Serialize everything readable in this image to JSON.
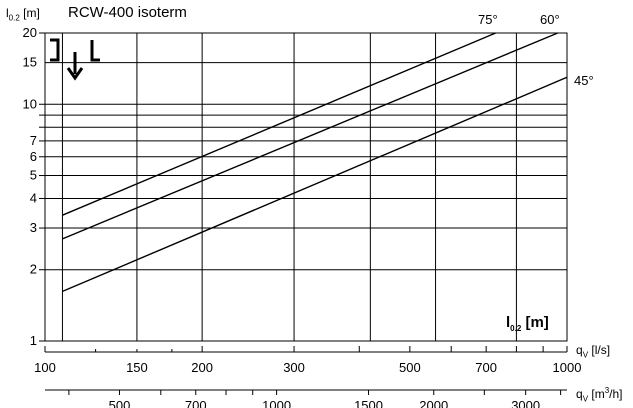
{
  "chart_data": {
    "type": "line",
    "title": "RCW-400 isoterm",
    "ylabel": {
      "main": "l",
      "sub": "0.2",
      "unit": " [m]"
    },
    "in_chart_label": {
      "main": "l",
      "sub": "0.2",
      "unit": " [m]"
    },
    "x_axis_1": {
      "label_main": "q",
      "label_sub": "V",
      "label_unit": " [l/s]",
      "scale": "log",
      "range": [
        100,
        1000
      ],
      "ticks": [
        100,
        150,
        200,
        300,
        500,
        700,
        1000
      ]
    },
    "x_axis_2": {
      "label_main": "q",
      "label_sub": "V",
      "label_unit": " [m",
      "label_sup": "3",
      "label_unit2": "/h]",
      "scale": "log",
      "range": [
        360,
        3600
      ],
      "ticks": [
        500,
        700,
        1000,
        1500,
        2000,
        3000
      ]
    },
    "y_axis": {
      "scale": "log",
      "range": [
        1,
        20
      ],
      "ticks": [
        1,
        2,
        3,
        4,
        5,
        6,
        7,
        10,
        15,
        20
      ]
    },
    "x_gridlines": [
      108,
      150,
      200,
      300,
      420,
      560,
      800,
      1000
    ],
    "y_gridlines": [
      2,
      3,
      4,
      5,
      6,
      7,
      8,
      9,
      10,
      15,
      20
    ],
    "series": [
      {
        "name": "75°",
        "x": [
          108,
          730
        ],
        "y": [
          3.4,
          20
        ]
      },
      {
        "name": "60°",
        "x": [
          108,
          960
        ],
        "y": [
          2.7,
          20
        ]
      },
      {
        "name": "45°",
        "x": [
          108,
          1000
        ],
        "y": [
          1.62,
          13
        ]
      }
    ],
    "grid": true
  }
}
